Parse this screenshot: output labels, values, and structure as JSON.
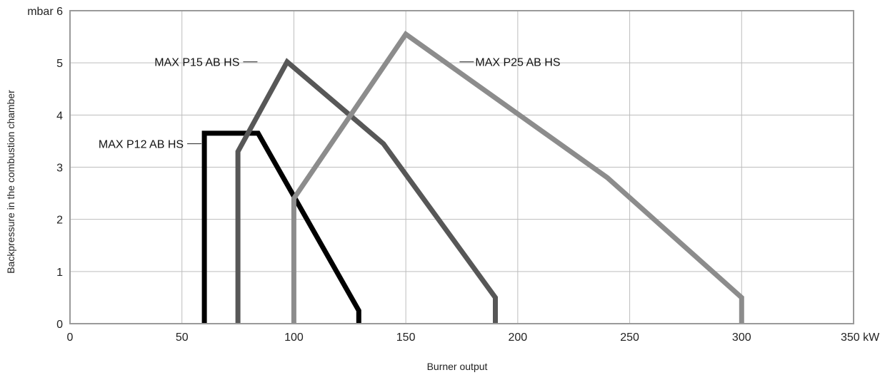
{
  "chart_data": {
    "type": "line",
    "xlabel": "Burner output",
    "ylabel": "Backpressure in the combustion chamber",
    "x_unit": "kW",
    "y_unit": "mbar",
    "xlim": [
      0,
      350
    ],
    "ylim": [
      0,
      6
    ],
    "x_ticks": [
      0,
      50,
      100,
      150,
      200,
      250,
      300,
      350
    ],
    "y_ticks": [
      0,
      1,
      2,
      3,
      4,
      5,
      6
    ],
    "grid": true,
    "series": [
      {
        "name": "MAX P12 AB HS",
        "color": "#000000",
        "points": [
          [
            60,
            0
          ],
          [
            60,
            3.65
          ],
          [
            84,
            3.65
          ],
          [
            129,
            0.25
          ],
          [
            129,
            0
          ]
        ]
      },
      {
        "name": "MAX P15 AB HS",
        "color": "#575757",
        "points": [
          [
            75,
            0
          ],
          [
            75,
            3.3
          ],
          [
            97,
            5.02
          ],
          [
            140,
            3.45
          ],
          [
            190,
            0.5
          ],
          [
            190,
            0
          ]
        ]
      },
      {
        "name": "MAX P25 AB HS",
        "color": "#8c8c8c",
        "points": [
          [
            100,
            0
          ],
          [
            100,
            2.4
          ],
          [
            150,
            5.55
          ],
          [
            240,
            2.8
          ],
          [
            300,
            0.5
          ],
          [
            300,
            0
          ]
        ]
      }
    ]
  }
}
